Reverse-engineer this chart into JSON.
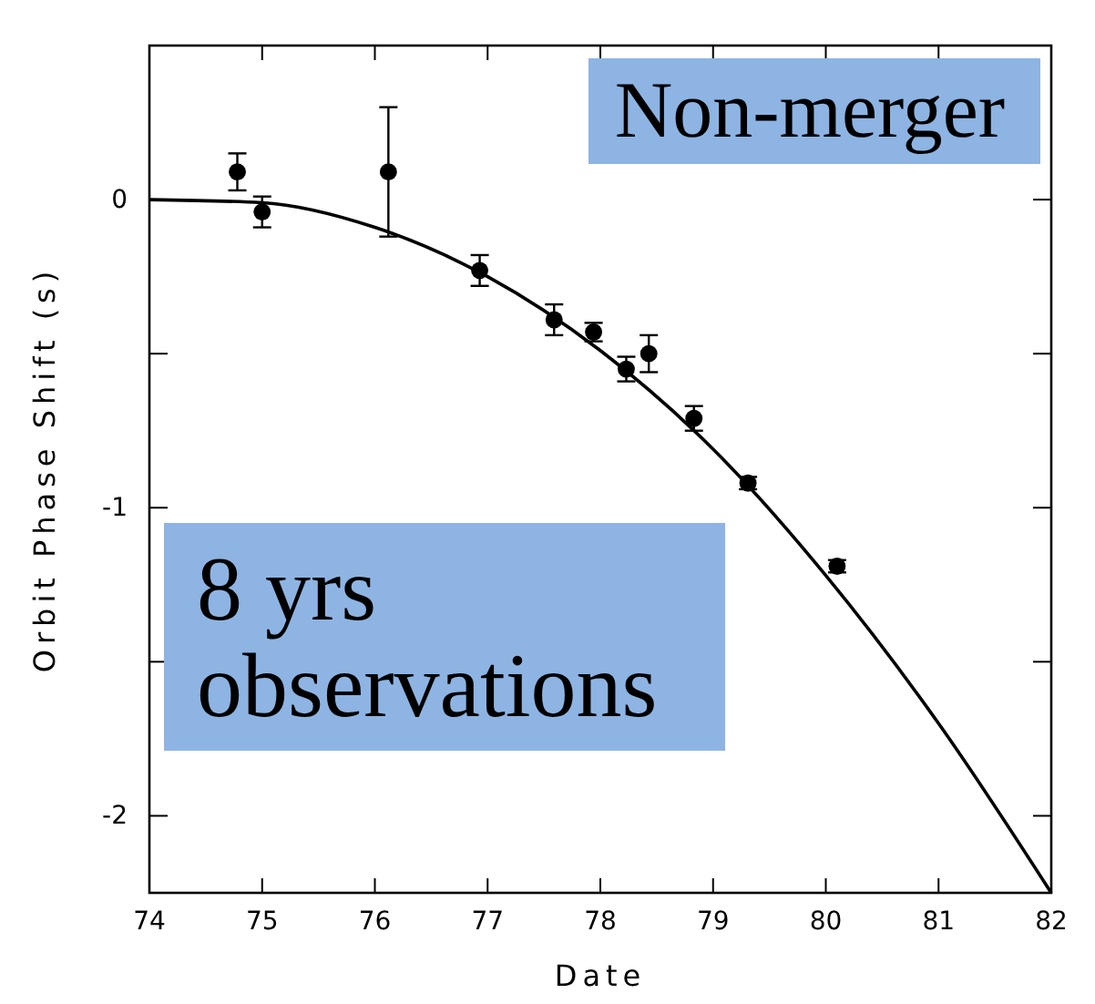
{
  "chart_data": {
    "type": "scatter",
    "xlabel": "Date",
    "ylabel": "Orbit Phase Shift (s)",
    "xlim": [
      74,
      82
    ],
    "xticks": [
      74,
      75,
      76,
      77,
      78,
      79,
      80,
      81,
      82
    ],
    "ylim": [
      -2.25,
      0.5
    ],
    "yticks": [
      {
        "value": -2,
        "label": "-2"
      },
      {
        "value": -1.5,
        "label": null
      },
      {
        "value": -1,
        "label": "-1"
      },
      {
        "value": -0.5,
        "label": null
      },
      0
    ],
    "marker": "circle",
    "grid": false,
    "annotations": [
      "Non-merger",
      "8 yrs observations"
    ],
    "series": [
      {
        "color": "#000000",
        "x": [
          74.78,
          75.0,
          76.12,
          76.93,
          77.59,
          77.94,
          78.23,
          78.43,
          78.83,
          79.31,
          80.1
        ],
        "values": [
          0.09,
          -0.04,
          0.09,
          -0.23,
          -0.39,
          -0.43,
          -0.55,
          -0.5,
          -0.71,
          -0.92,
          -1.19
        ],
        "errors": [
          0.06,
          0.05,
          0.21,
          0.05,
          0.05,
          0.03,
          0.04,
          0.06,
          0.04,
          0.02,
          0.02
        ]
      },
      {
        "type": "line",
        "color": "#000000",
        "marker": "none",
        "x": [
          74,
          75,
          76,
          77,
          78,
          79,
          80,
          81,
          82
        ],
        "values": [
          0,
          -0.01,
          -0.09,
          -0.25,
          -0.49,
          -0.81,
          -1.22,
          -1.7,
          -2.25
        ]
      }
    ]
  }
}
